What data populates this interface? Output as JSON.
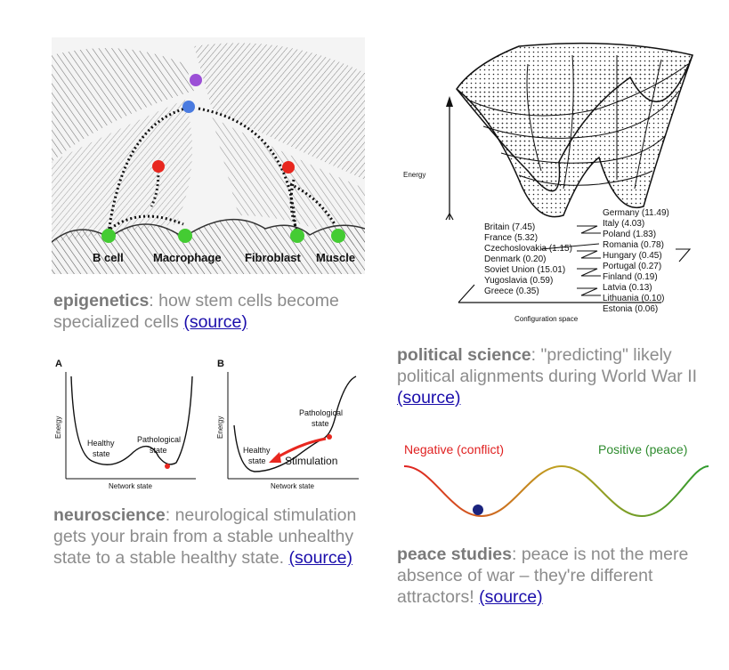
{
  "epigenetics": {
    "labels": [
      "B cell",
      "Macrophage",
      "Fibroblast",
      "Muscle"
    ],
    "caption_bold": "epigenetics",
    "caption_text": ": how stem cells become specialized cells ",
    "link": "(source)",
    "colors": {
      "purple": "#9b4fd6",
      "blue": "#4a7be0",
      "red": "#e8271f",
      "green": "#44cc33"
    }
  },
  "political": {
    "axis_energy": "Energy",
    "axis_config": "Configuration space",
    "left_list": [
      "Britain (7.45)",
      "France (5.32)",
      "Czechoslovakia (1.15)",
      "Denmark (0.20)",
      "Soviet Union (15.01)",
      "Yugoslavia (0.59)",
      "Greece (0.35)"
    ],
    "right_list": [
      "Germany (11.49)",
      "Italy (4.03)",
      "Poland (1.83)",
      "Romania (0.78)",
      "Hungary (0.45)",
      "Portugal (0.27)",
      "Finland (0.19)",
      "Latvia (0.13)",
      "Lithuania (0.10)",
      "Estonia (0.06)"
    ],
    "caption_bold": "political science",
    "caption_text": ": \"predicting\" likely political alignments during World War II ",
    "link": "(source)"
  },
  "neuro": {
    "panel_a": "A",
    "panel_b": "B",
    "energy": "Energy",
    "network_state": "Network state",
    "healthy": "Healthy",
    "state": "state",
    "pathological": "Pathological",
    "stimulation": "Stimulation",
    "caption_bold": "neuroscience",
    "caption_text": ": neurological stimulation gets your brain from a stable unhealthy state to a stable healthy state. ",
    "link": "(source)"
  },
  "peace": {
    "negative": "Negative (conflict)",
    "positive": "Positive (peace)",
    "caption_bold": "peace studies",
    "caption_text": ": peace is not the mere absence of war – they're different attractors! ",
    "link": "(source)",
    "colors": {
      "negative": "#e02020",
      "positive": "#2e8b2e",
      "ball": "#1a237e"
    }
  }
}
